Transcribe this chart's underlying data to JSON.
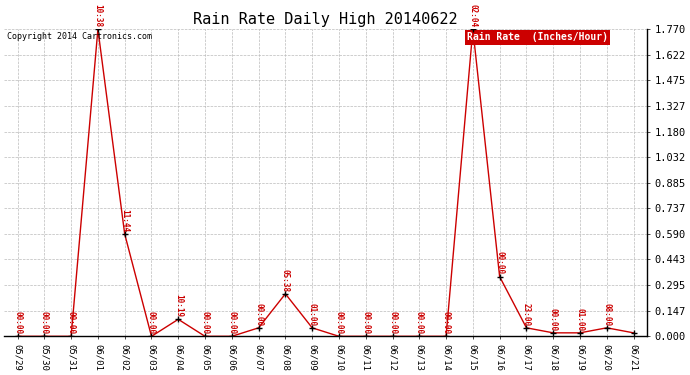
{
  "title": "Rain Rate Daily High 20140622",
  "copyright": "Copyright 2014 Cartronics.com",
  "background_color": "#ffffff",
  "line_color": "#cc0000",
  "grid_color": "#bbbbbb",
  "yticks": [
    0.0,
    0.147,
    0.295,
    0.443,
    0.59,
    0.737,
    0.885,
    1.032,
    1.18,
    1.327,
    1.475,
    1.622,
    1.77
  ],
  "xlabels": [
    "05/29",
    "05/30",
    "05/31",
    "06/01",
    "06/02",
    "06/03",
    "06/04",
    "06/05",
    "06/06",
    "06/07",
    "06/08",
    "06/09",
    "06/10",
    "06/11",
    "06/12",
    "06/13",
    "06/14",
    "06/15",
    "06/16",
    "06/17",
    "06/18",
    "06/19",
    "06/20",
    "06/21"
  ],
  "xvalues": [
    0,
    1,
    2,
    3,
    4,
    5,
    6,
    7,
    8,
    9,
    10,
    11,
    12,
    13,
    14,
    15,
    16,
    17,
    18,
    19,
    20,
    21,
    22,
    23
  ],
  "yvalues": [
    0.0,
    0.0,
    0.0,
    1.77,
    0.59,
    0.0,
    0.098,
    0.0,
    0.0,
    0.049,
    0.245,
    0.049,
    0.0,
    0.0,
    0.0,
    0.0,
    0.0,
    1.77,
    0.344,
    0.049,
    0.02,
    0.02,
    0.049,
    0.02
  ],
  "point_labels": [
    "00:00",
    "00:00",
    "00:00",
    "10:38",
    "11:44",
    "00:00",
    "10:19",
    "00:00",
    "00:00",
    "00:00",
    "05:38",
    "01:00",
    "00:00",
    "00:00",
    "00:00",
    "00:00",
    "00:00",
    "02:04",
    "00:00",
    "23:00",
    "00:00",
    "01:00",
    "08:00",
    ""
  ],
  "ylim": [
    0.0,
    1.77
  ],
  "legend_label": "Rain Rate  (Inches/Hour)",
  "legend_bg": "#cc0000",
  "legend_text_color": "#ffffff",
  "figwidth": 6.9,
  "figheight": 3.75,
  "dpi": 100
}
